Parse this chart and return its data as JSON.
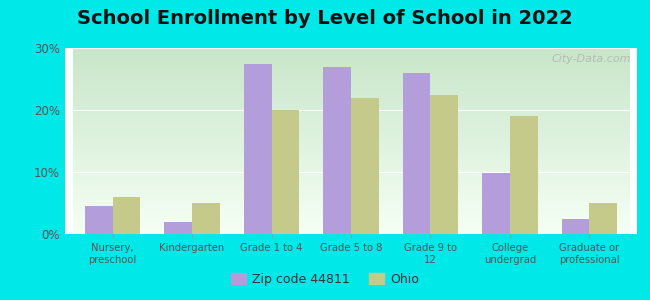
{
  "title": "School Enrollment by Level of School in 2022",
  "categories": [
    "Nursery,\npreschool",
    "Kindergarten",
    "Grade 1 to 4",
    "Grade 5 to 8",
    "Grade 9 to\n12",
    "College\nundergrad",
    "Graduate or\nprofessional"
  ],
  "zip_values": [
    4.5,
    2.0,
    27.5,
    27.0,
    26.0,
    9.8,
    2.5
  ],
  "ohio_values": [
    6.0,
    5.0,
    20.0,
    22.0,
    22.5,
    19.0,
    5.0
  ],
  "zip_color": "#b39ddb",
  "ohio_color": "#c5c98a",
  "background_outer": "#00e8e8",
  "background_inner_top": "#c8e6c9",
  "background_inner_bottom": "#f5fff5",
  "ylim": [
    0,
    30
  ],
  "yticks": [
    0,
    10,
    20,
    30
  ],
  "ytick_labels": [
    "0%",
    "10%",
    "20%",
    "30%"
  ],
  "legend_zip_label": "Zip code 44811",
  "legend_ohio_label": "Ohio",
  "bar_width": 0.35,
  "title_fontsize": 14,
  "watermark_text": "City-Data.com",
  "tick_label_color": "#555555",
  "title_color": "#111111"
}
